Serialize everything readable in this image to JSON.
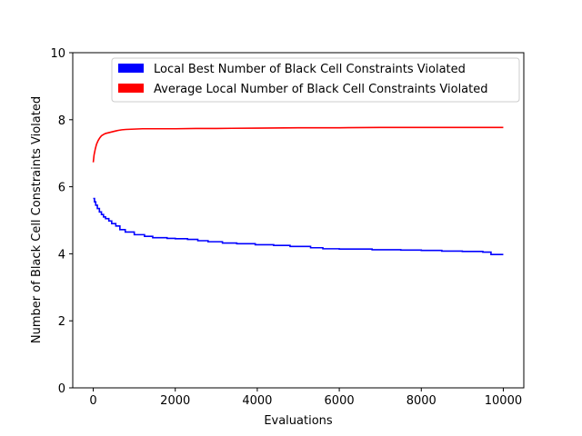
{
  "chart_data": {
    "type": "line",
    "title": "",
    "xlabel": "Evaluations",
    "ylabel": "Number of Black Cell Constraints Violated",
    "xlim": [
      -500,
      10500
    ],
    "ylim": [
      0,
      10
    ],
    "xticks": [
      0,
      2000,
      4000,
      6000,
      8000,
      10000
    ],
    "yticks": [
      0,
      2,
      4,
      6,
      8,
      10
    ],
    "legend_position": "top-right",
    "grid": false,
    "series": [
      {
        "name": "Local Best Number of Black Cell Constraints Violated",
        "color": "#0000ff",
        "step": true,
        "x": [
          0,
          30,
          60,
          100,
          150,
          200,
          250,
          300,
          380,
          450,
          550,
          650,
          780,
          1000,
          1250,
          1450,
          1800,
          2000,
          2300,
          2550,
          2800,
          3150,
          3500,
          3950,
          4400,
          4800,
          5300,
          5600,
          6000,
          6800,
          7500,
          8000,
          8500,
          9000,
          9500,
          9700,
          10000
        ],
        "y": [
          5.65,
          5.55,
          5.45,
          5.35,
          5.25,
          5.17,
          5.1,
          5.05,
          4.98,
          4.9,
          4.83,
          4.72,
          4.65,
          4.57,
          4.52,
          4.48,
          4.46,
          4.45,
          4.43,
          4.39,
          4.36,
          4.32,
          4.3,
          4.27,
          4.25,
          4.22,
          4.18,
          4.15,
          4.14,
          4.12,
          4.11,
          4.1,
          4.08,
          4.07,
          4.05,
          3.98,
          3.98
        ]
      },
      {
        "name": "Average Local Number of Black Cell Constraints Violated",
        "color": "#ff0000",
        "step": false,
        "x": [
          0,
          20,
          50,
          80,
          120,
          160,
          200,
          250,
          300,
          400,
          500,
          600,
          700,
          800,
          1000,
          1200,
          1500,
          2000,
          2500,
          3000,
          4000,
          5000,
          6000,
          7000,
          8000,
          9000,
          10000
        ],
        "y": [
          6.73,
          6.95,
          7.13,
          7.27,
          7.38,
          7.46,
          7.52,
          7.56,
          7.59,
          7.62,
          7.65,
          7.68,
          7.7,
          7.71,
          7.72,
          7.73,
          7.73,
          7.73,
          7.74,
          7.74,
          7.75,
          7.76,
          7.76,
          7.77,
          7.77,
          7.77,
          7.77
        ]
      }
    ]
  }
}
